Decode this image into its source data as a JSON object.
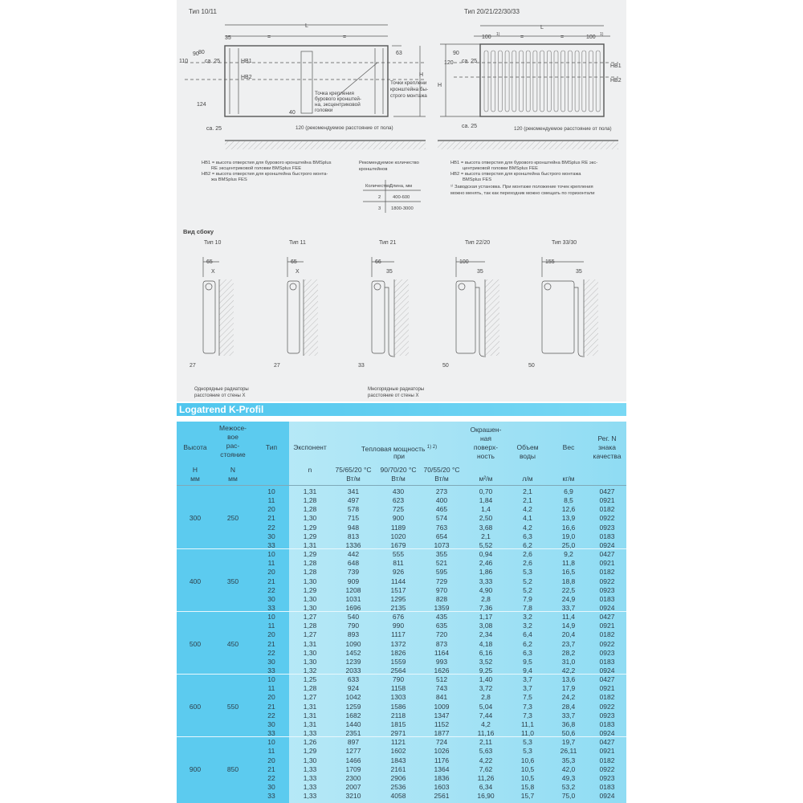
{
  "drawings": {
    "front_left": {
      "title": "Тип 10/11",
      "L": "L",
      "d35": "35",
      "eq1": "=",
      "eq2": "=",
      "d90": "90",
      "d80": "80",
      "d110": "110",
      "ca25_top": "ca. 25",
      "HB1": "HB1",
      "HB2": "HB2",
      "d63": "63",
      "H": "H",
      "d124": "124",
      "d40": "40",
      "ca25_bottom": "ca. 25",
      "drill_note": [
        "Точка крепления",
        "бурового кронштей-",
        "на, эксцентриковой",
        "головки"
      ],
      "quick_note": [
        "Точки креплени",
        "кронштейна бы-",
        "строго монтажа"
      ],
      "floor_note": "120 (рекомендуемое расстояние от пола)"
    },
    "front_right": {
      "title": "Тип 20/21/22/30/33",
      "L": "L",
      "d100_left": "100",
      "sup1": "1)",
      "eq1": "=",
      "eq2": "=",
      "d100_right": "100",
      "sup2": "1)",
      "d90": "90",
      "d120": "120",
      "ca25_top": "ca. 25",
      "H": "H",
      "HB1": "HB1",
      "HB2": "HB2",
      "ca25_bottom": "ca. 25",
      "floor_note": "120 (рекомендуемое расстояние от пола)"
    },
    "notes_left": [
      "HB1 = высота отверстия для бурового кронштейна BMSplus",
      "RE эксцентриковой головки BMSplus FEE",
      "HB2 = высота отверстия для кронштейна быстрого монта-",
      "жа BMSplus FES"
    ],
    "bracket_table": {
      "title": [
        "Рекомендуемое количество",
        "кронштейнов"
      ],
      "headers": [
        "Количество",
        "Длина, мм"
      ],
      "rows": [
        [
          "2",
          "400-600"
        ],
        [
          "3",
          "1800-3000"
        ]
      ]
    },
    "notes_right": [
      "HB1 = высота отверстия для бурового кронштейна BMSplus RE экс-",
      "центриковой головки BMSplus FEE",
      "HB2 = высота отверстия для кронштейна быстрого монтажа",
      "BMSplus FES",
      "¹⁾ Заводская установка. При монтаже положение точек крепления",
      "можно менять, так как переходник можно смещать по горизонтали"
    ],
    "side_view": {
      "title": "Вид сбоку",
      "types": [
        {
          "label": "Тип 10",
          "top": "65",
          "gap": "X",
          "bottom": "27"
        },
        {
          "label": "Тип 11",
          "top": "65",
          "gap": "X",
          "bottom": "27"
        },
        {
          "label": "Тип 21",
          "top": "66",
          "gap": "35",
          "bottom": "33"
        },
        {
          "label": "Тип 22/20",
          "top": "100",
          "gap": "35",
          "bottom": "50"
        },
        {
          "label": "Тип 33/30",
          "top": "155",
          "gap": "35",
          "bottom": "50"
        }
      ],
      "note_single": [
        "Однорядные радиаторы",
        "расстояние от стены X"
      ],
      "note_multi": [
        "Многорядные радиаторы",
        "расстояние от стены X"
      ]
    }
  },
  "table": {
    "title": "Logatrend K-Profil",
    "headers": {
      "height": "Высота",
      "spacing": [
        "Межосе-",
        "вое",
        "рас-",
        "стояние"
      ],
      "type": "Тип",
      "exponent": "Экспонент",
      "power": "Тепловая мощность",
      "power_sup": "1) 2)",
      "power_at": "при",
      "surface": [
        "Окрашен-",
        "ная",
        "поверх-",
        "ность"
      ],
      "volume": [
        "Объем",
        "воды"
      ],
      "weight": "Вес",
      "reg": [
        "Рег. N",
        "знака",
        "качества"
      ],
      "units": {
        "H": "H",
        "H_unit": "мм",
        "N": "N",
        "N_unit": "мм",
        "n": "n",
        "t1": "75/65/20 °C",
        "t2": "90/70/20 °C",
        "t3": "70/55/20 °C",
        "p_unit1": "Вт/м",
        "p_unit2": "Вт/м",
        "p_unit3": "Вт/м",
        "surface_unit": "м²/м",
        "volume_unit": "л/м",
        "weight_unit": "кг/м"
      }
    },
    "groups": [
      {
        "H": "300",
        "N": "250",
        "rows": [
          [
            "10",
            "1,31",
            "341",
            "430",
            "273",
            "0,70",
            "2,1",
            "6,9",
            "0427"
          ],
          [
            "11",
            "1,28",
            "497",
            "623",
            "400",
            "1,84",
            "2,1",
            "8,5",
            "0921"
          ],
          [
            "20",
            "1,28",
            "578",
            "725",
            "465",
            "1,4",
            "4,2",
            "12,6",
            "0182"
          ],
          [
            "21",
            "1,30",
            "715",
            "900",
            "574",
            "2,50",
            "4,1",
            "13,9",
            "0922"
          ],
          [
            "22",
            "1,29",
            "948",
            "1189",
            "763",
            "3,68",
            "4,2",
            "16,6",
            "0923"
          ],
          [
            "30",
            "1,29",
            "813",
            "1020",
            "654",
            "2,1",
            "6,3",
            "19,0",
            "0183"
          ],
          [
            "33",
            "1,31",
            "1336",
            "1679",
            "1073",
            "5,52",
            "6,2",
            "25,0",
            "0924"
          ]
        ]
      },
      {
        "H": "400",
        "N": "350",
        "rows": [
          [
            "10",
            "1,29",
            "442",
            "555",
            "355",
            "0,94",
            "2,6",
            "9,2",
            "0427"
          ],
          [
            "11",
            "1,28",
            "648",
            "811",
            "521",
            "2,46",
            "2,6",
            "11,8",
            "0921"
          ],
          [
            "20",
            "1,28",
            "739",
            "926",
            "595",
            "1,86",
            "5,3",
            "16,5",
            "0182"
          ],
          [
            "21",
            "1,30",
            "909",
            "1144",
            "729",
            "3,33",
            "5,2",
            "18,8",
            "0922"
          ],
          [
            "22",
            "1,29",
            "1208",
            "1517",
            "970",
            "4,90",
            "5,2",
            "22,5",
            "0923"
          ],
          [
            "30",
            "1,30",
            "1031",
            "1295",
            "828",
            "2,8",
            "7,9",
            "24,9",
            "0183"
          ],
          [
            "33",
            "1,30",
            "1696",
            "2135",
            "1359",
            "7,36",
            "7,8",
            "33,7",
            "0924"
          ]
        ]
      },
      {
        "H": "500",
        "N": "450",
        "rows": [
          [
            "10",
            "1,27",
            "540",
            "676",
            "435",
            "1,17",
            "3,2",
            "11,4",
            "0427"
          ],
          [
            "11",
            "1,28",
            "790",
            "990",
            "635",
            "3,08",
            "3,2",
            "14,9",
            "0921"
          ],
          [
            "20",
            "1,27",
            "893",
            "1117",
            "720",
            "2,34",
            "6,4",
            "20,4",
            "0182"
          ],
          [
            "21",
            "1,31",
            "1090",
            "1372",
            "873",
            "4,18",
            "6,2",
            "23,7",
            "0922"
          ],
          [
            "22",
            "1,30",
            "1452",
            "1826",
            "1164",
            "6,16",
            "6,3",
            "28,2",
            "0923"
          ],
          [
            "30",
            "1,30",
            "1239",
            "1559",
            "993",
            "3,52",
            "9,5",
            "31,0",
            "0183"
          ],
          [
            "33",
            "1,32",
            "2033",
            "2564",
            "1626",
            "9,25",
            "9,4",
            "42,2",
            "0924"
          ]
        ]
      },
      {
        "H": "600",
        "N": "550",
        "rows": [
          [
            "10",
            "1,25",
            "633",
            "790",
            "512",
            "1,40",
            "3,7",
            "13,6",
            "0427"
          ],
          [
            "11",
            "1,28",
            "924",
            "1158",
            "743",
            "3,72",
            "3,7",
            "17,9",
            "0921"
          ],
          [
            "20",
            "1,27",
            "1042",
            "1303",
            "841",
            "2,8",
            "7,5",
            "24,2",
            "0182"
          ],
          [
            "21",
            "1,31",
            "1259",
            "1586",
            "1009",
            "5,04",
            "7,3",
            "28,4",
            "0922"
          ],
          [
            "22",
            "1,31",
            "1682",
            "2118",
            "1347",
            "7,44",
            "7,3",
            "33,7",
            "0923"
          ],
          [
            "30",
            "1,31",
            "1440",
            "1815",
            "1152",
            "4,2",
            "11,1",
            "36,8",
            "0183"
          ],
          [
            "33",
            "1,33",
            "2351",
            "2971",
            "1877",
            "11,16",
            "11,0",
            "50,6",
            "0924"
          ]
        ]
      },
      {
        "H": "900",
        "N": "850",
        "rows": [
          [
            "10",
            "1,26",
            "897",
            "1121",
            "724",
            "2,11",
            "5,3",
            "19,7",
            "0427"
          ],
          [
            "11",
            "1,29",
            "1277",
            "1602",
            "1026",
            "5,63",
            "5,3",
            "26,11",
            "0921"
          ],
          [
            "20",
            "1,30",
            "1466",
            "1843",
            "1176",
            "4,22",
            "10,6",
            "35,3",
            "0182"
          ],
          [
            "21",
            "1,33",
            "1709",
            "2161",
            "1364",
            "7,62",
            "10,5",
            "42,0",
            "0922"
          ],
          [
            "22",
            "1,33",
            "2300",
            "2906",
            "1836",
            "11,26",
            "10,5",
            "49,3",
            "0923"
          ],
          [
            "30",
            "1,33",
            "2007",
            "2536",
            "1603",
            "6,34",
            "15,8",
            "53,2",
            "0183"
          ],
          [
            "33",
            "1,33",
            "3210",
            "4058",
            "2561",
            "16,90",
            "15,7",
            "75,0",
            "0924"
          ]
        ]
      }
    ]
  },
  "colors": {
    "band": "#4fc6ee",
    "left_columns": "#5ccbef",
    "table_body": "#a6e3f5",
    "drawing_bg": "#eff0f1"
  }
}
